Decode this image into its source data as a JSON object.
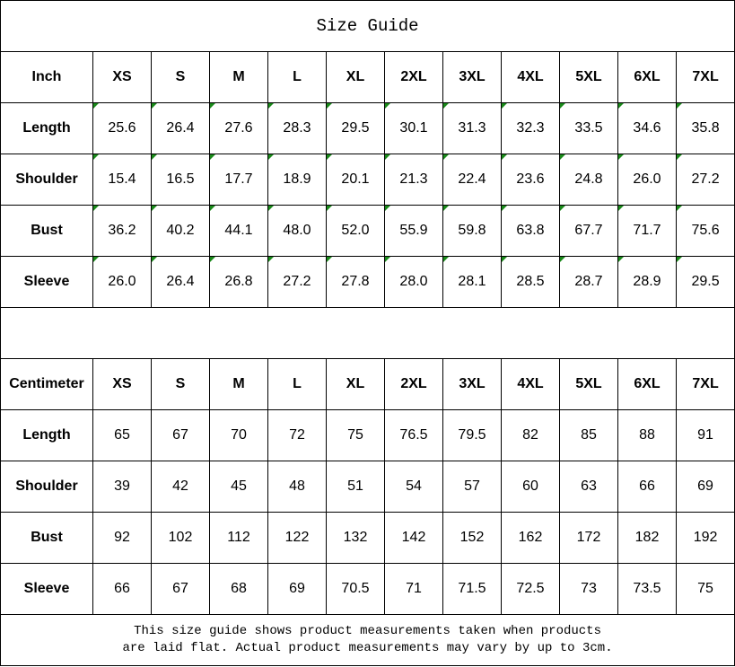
{
  "title": "Size Guide",
  "sizes": [
    "XS",
    "S",
    "M",
    "L",
    "XL",
    "2XL",
    "3XL",
    "4XL",
    "5XL",
    "6XL",
    "7XL"
  ],
  "tables": [
    {
      "unit": "Inch",
      "flagged": true,
      "rows": [
        {
          "label": "Length",
          "values": [
            "25.6",
            "26.4",
            "27.6",
            "28.3",
            "29.5",
            "30.1",
            "31.3",
            "32.3",
            "33.5",
            "34.6",
            "35.8"
          ]
        },
        {
          "label": "Shoulder",
          "values": [
            "15.4",
            "16.5",
            "17.7",
            "18.9",
            "20.1",
            "21.3",
            "22.4",
            "23.6",
            "24.8",
            "26.0",
            "27.2"
          ]
        },
        {
          "label": "Bust",
          "values": [
            "36.2",
            "40.2",
            "44.1",
            "48.0",
            "52.0",
            "55.9",
            "59.8",
            "63.8",
            "67.7",
            "71.7",
            "75.6"
          ]
        },
        {
          "label": "Sleeve",
          "values": [
            "26.0",
            "26.4",
            "26.8",
            "27.2",
            "27.8",
            "28.0",
            "28.1",
            "28.5",
            "28.7",
            "28.9",
            "29.5"
          ]
        }
      ]
    },
    {
      "unit": "Centimeter",
      "flagged": false,
      "rows": [
        {
          "label": "Length",
          "values": [
            "65",
            "67",
            "70",
            "72",
            "75",
            "76.5",
            "79.5",
            "82",
            "85",
            "88",
            "91"
          ]
        },
        {
          "label": "Shoulder",
          "values": [
            "39",
            "42",
            "45",
            "48",
            "51",
            "54",
            "57",
            "60",
            "63",
            "66",
            "69"
          ]
        },
        {
          "label": "Bust",
          "values": [
            "92",
            "102",
            "112",
            "122",
            "132",
            "142",
            "152",
            "162",
            "172",
            "182",
            "192"
          ]
        },
        {
          "label": "Sleeve",
          "values": [
            "66",
            "67",
            "68",
            "69",
            "70.5",
            "71",
            "71.5",
            "72.5",
            "73",
            "73.5",
            "75"
          ]
        }
      ]
    }
  ],
  "footer": {
    "line1": "This size guide shows product measurements taken when products",
    "line2": "are laid flat. Actual product measurements may vary by up to 3cm."
  },
  "colors": {
    "flag": "#1a8a1a",
    "border": "#000000"
  }
}
